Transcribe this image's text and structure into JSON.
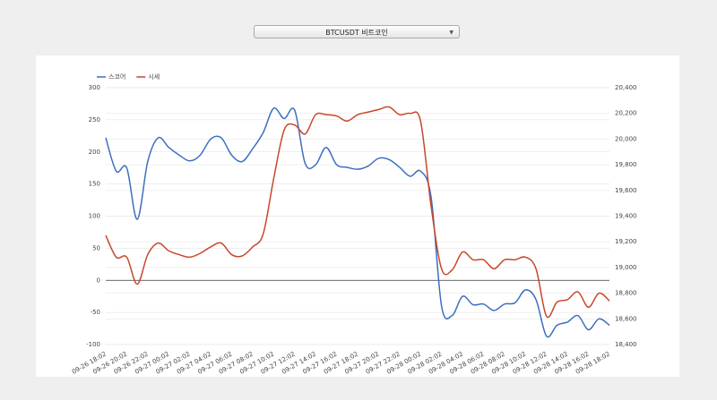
{
  "selector": "BTCUSDT 비트코인",
  "chart_data": {
    "type": "line",
    "categories": [
      "09-26 18:02",
      null,
      "09-26 20:02",
      null,
      "09-26 22:02",
      null,
      "09-27 00:02",
      null,
      "09-27 02:02",
      null,
      "09-27 04:02",
      null,
      "09-27 06:02",
      null,
      "09-27 08:02",
      null,
      "09-27 10:02",
      null,
      "09-27 12:02",
      null,
      "09-27 14:02",
      null,
      "09-27 16:02",
      null,
      "09-27 18:02",
      null,
      "09-27 20:02",
      null,
      "09-27 22:02",
      null,
      "09-28 00:02",
      null,
      "09-28 02:02",
      null,
      "09-28 04:02",
      null,
      "09-28 06:02",
      null,
      "09-28 08:02",
      null,
      "09-28 10:02",
      null,
      "09-28 12:02",
      null,
      "09-28 14:02",
      null,
      "09-28 16:02",
      null,
      "09-28 18:02"
    ],
    "series": [
      {
        "name": "스코어",
        "color": "#3d6fbf",
        "axis": "y",
        "values": [
          222,
          170,
          175,
          95,
          185,
          222,
          207,
          195,
          186,
          195,
          220,
          222,
          195,
          185,
          205,
          230,
          268,
          252,
          265,
          182,
          180,
          207,
          180,
          176,
          173,
          178,
          190,
          188,
          176,
          162,
          170,
          130,
          -40,
          -55,
          -25,
          -38,
          -37,
          -47,
          -37,
          -35,
          -15,
          -30,
          -87,
          -70,
          -65,
          -55,
          -77,
          -60,
          -70
        ]
      },
      {
        "name": "시세",
        "color": "#c8472b",
        "axis": "y2",
        "values": [
          19250,
          19080,
          19080,
          18870,
          19100,
          19190,
          19130,
          19100,
          19080,
          19110,
          19160,
          19190,
          19100,
          19090,
          19160,
          19260,
          19690,
          20070,
          20110,
          20040,
          20190,
          20190,
          20180,
          20140,
          20190,
          20210,
          20230,
          20250,
          20190,
          20200,
          20140,
          19480,
          18990,
          18980,
          19120,
          19060,
          19060,
          18990,
          19060,
          19060,
          19080,
          18990,
          18620,
          18730,
          18750,
          18810,
          18690,
          18800,
          18740
        ]
      }
    ],
    "ylim": [
      -100,
      300
    ],
    "yticks": [
      -100,
      -50,
      0,
      50,
      100,
      150,
      200,
      250,
      300
    ],
    "y2lim": [
      18400,
      20400
    ],
    "y2ticks": [
      {
        "value": 18400,
        "label": "18,400"
      },
      {
        "value": 18600,
        "label": "18,600"
      },
      {
        "value": 18800,
        "label": "18,800"
      },
      {
        "value": 19000,
        "label": "19,000"
      },
      {
        "value": 19200,
        "label": "19,200"
      },
      {
        "value": 19400,
        "label": "19,400"
      },
      {
        "value": 19600,
        "label": "19,600"
      },
      {
        "value": 19800,
        "label": "19,800"
      },
      {
        "value": 20000,
        "label": "20,000"
      },
      {
        "value": 20200,
        "label": "20,200"
      },
      {
        "value": 20400,
        "label": "20,400"
      }
    ],
    "grid": true,
    "legend": "top-left"
  }
}
